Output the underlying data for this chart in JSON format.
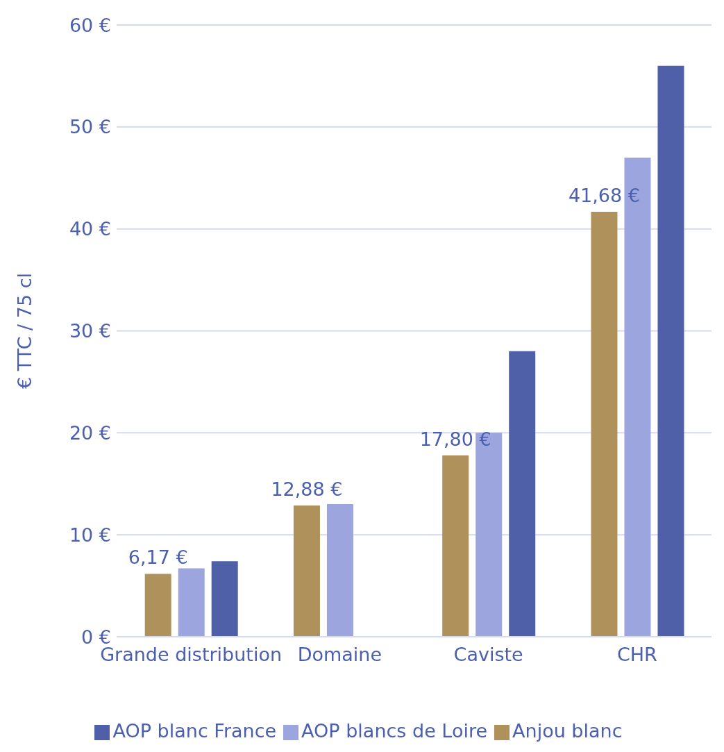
{
  "chart_data": {
    "type": "bar",
    "ylabel": "€ TTC / 75 cl",
    "categories": [
      "Grande distribution",
      "Domaine",
      "Caviste",
      "CHR"
    ],
    "series": [
      {
        "name": "Anjou blanc",
        "color": "#ae915b",
        "values": [
          6.17,
          12.88,
          17.8,
          41.68
        ],
        "value_labels": [
          "6,17 €",
          "12,88 €",
          "17,80 €",
          "41,68 €"
        ]
      },
      {
        "name": "AOP blancs de Loire",
        "color": "#9ca5de",
        "values": [
          6.7,
          13.0,
          20.0,
          47.0
        ]
      },
      {
        "name": "AOP blanc France",
        "color": "#5060a8",
        "values": [
          7.4,
          null,
          28.0,
          56.0
        ]
      }
    ],
    "ylim": [
      0,
      60
    ],
    "yticks": [
      {
        "value": 0,
        "label": "0 €"
      },
      {
        "value": 10,
        "label": "10 €"
      },
      {
        "value": 20,
        "label": "20 €"
      },
      {
        "value": 30,
        "label": "30 €"
      },
      {
        "value": 40,
        "label": "40 €"
      },
      {
        "value": 50,
        "label": "50 €"
      },
      {
        "value": 60,
        "label": "60 €"
      }
    ],
    "grid": "y",
    "legend": "bottom"
  }
}
